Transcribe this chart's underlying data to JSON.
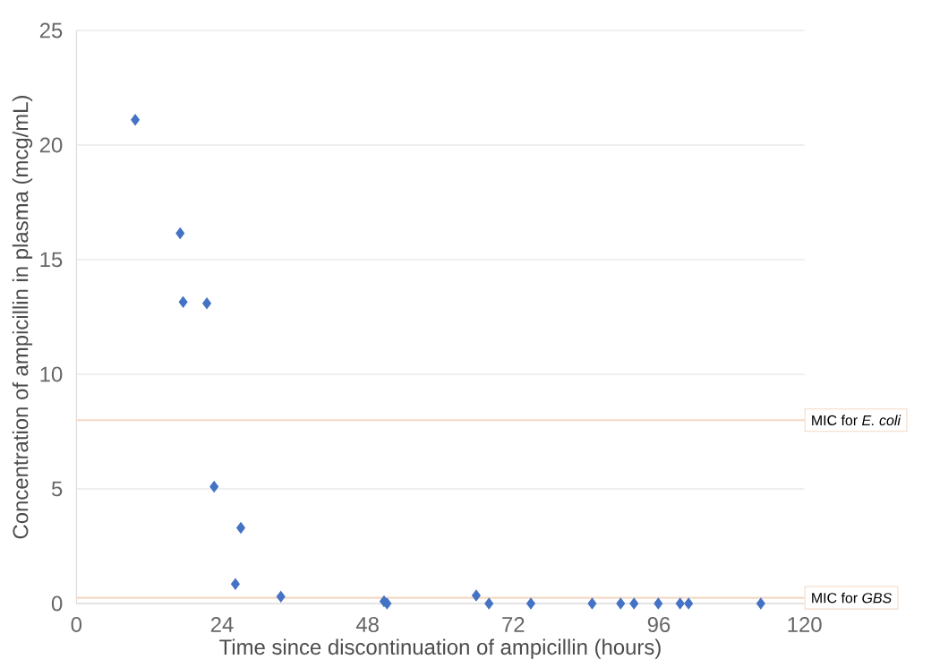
{
  "chart_data": {
    "type": "scatter",
    "xlabel": "Time since discontinuation of ampicillin (hours)",
    "ylabel": "Concentration of ampicillin in plasma (mcg/mL)",
    "x": [
      9.7,
      17.1,
      17.6,
      21.5,
      22.7,
      27.1,
      26.2,
      33.7,
      50.7,
      51.2,
      65.9,
      68.0,
      74.9,
      85.0,
      89.7,
      91.9,
      95.9,
      99.5,
      100.9,
      112.8
    ],
    "series": [
      {
        "color": "#4472c4",
        "values": [
          21.1,
          16.15,
          13.15,
          13.1,
          5.1,
          3.3,
          0.85,
          0.3,
          0.1,
          0,
          0.35,
          0,
          0,
          0,
          0,
          0,
          0,
          0,
          0,
          0
        ]
      }
    ],
    "xlim": [
      0,
      120
    ],
    "xticks": [
      0,
      24,
      48,
      72,
      96,
      120
    ],
    "ylim": [
      0,
      25
    ],
    "yticks": [
      0,
      5,
      10,
      15,
      20,
      25
    ],
    "grid": "y",
    "marker": "diamond",
    "ref_lines": [
      {
        "axis": "y",
        "value": 8,
        "label": "MIC for *E. coli*",
        "color": "#f4d9c6"
      },
      {
        "axis": "y",
        "value": 0.25,
        "label": "MIC for *GBS*",
        "color": "#f4d9c6"
      }
    ]
  }
}
